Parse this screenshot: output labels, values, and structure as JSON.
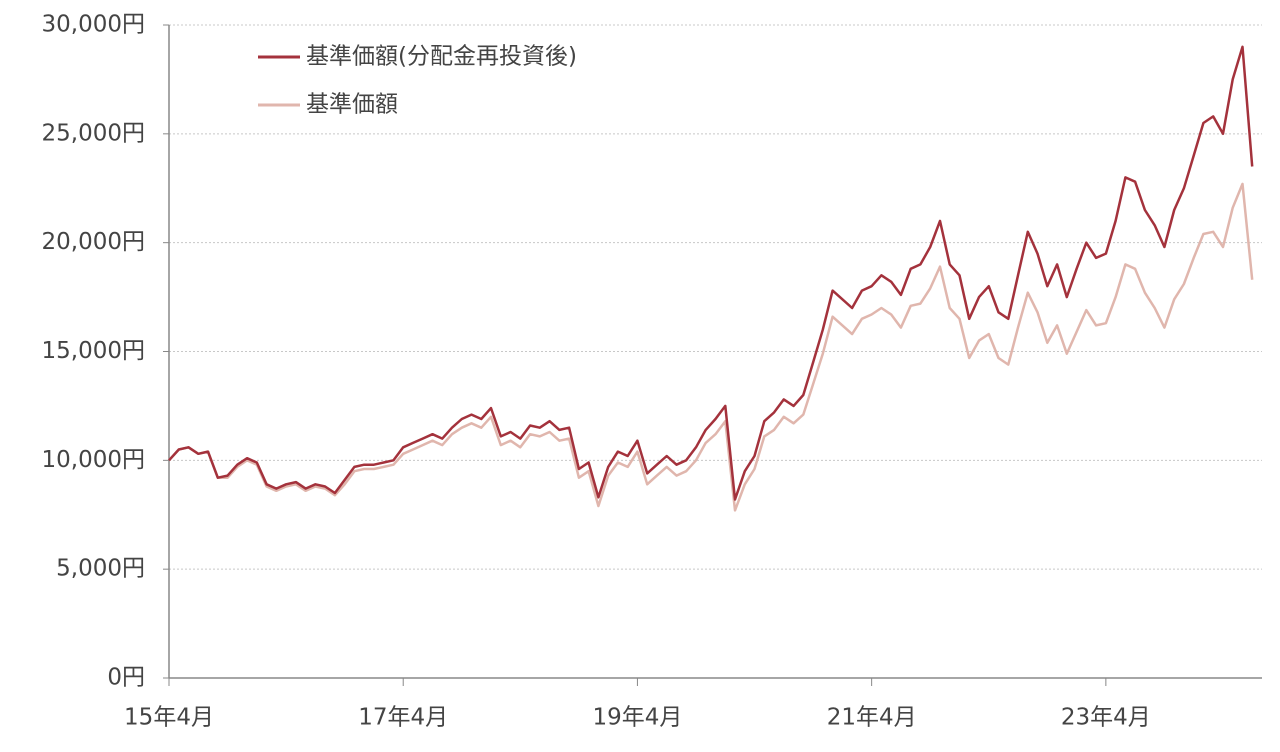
{
  "chart_data": {
    "type": "line",
    "categories": [
      "15年4月",
      null,
      null,
      null,
      null,
      null,
      null,
      null,
      null,
      null,
      null,
      null,
      null,
      null,
      null,
      null,
      null,
      null,
      null,
      null,
      null,
      null,
      null,
      null,
      "17年4月",
      null,
      null,
      null,
      null,
      null,
      null,
      null,
      null,
      null,
      null,
      null,
      null,
      null,
      null,
      null,
      null,
      null,
      null,
      null,
      null,
      null,
      null,
      null,
      "19年4月",
      null,
      null,
      null,
      null,
      null,
      null,
      null,
      null,
      null,
      null,
      null,
      null,
      null,
      null,
      null,
      null,
      null,
      null,
      null,
      null,
      null,
      null,
      null,
      "21年4月",
      null,
      null,
      null,
      null,
      null,
      null,
      null,
      null,
      null,
      null,
      null,
      null,
      null,
      null,
      null,
      null,
      null,
      null,
      null,
      null,
      null,
      null,
      null,
      "23年4月",
      null,
      null,
      null,
      null,
      null,
      null,
      null,
      null,
      null,
      null,
      null,
      null,
      null,
      null,
      null
    ],
    "series": [
      {
        "name": "基準価額(分配金再投資後)",
        "color": "#a4323c",
        "values": [
          10000,
          10500,
          10600,
          10300,
          10400,
          9200,
          9300,
          9800,
          10100,
          9900,
          8900,
          8700,
          8900,
          9000,
          8700,
          8900,
          8800,
          8500,
          9100,
          9700,
          9800,
          9800,
          9900,
          10000,
          10600,
          10800,
          11000,
          11200,
          11000,
          11500,
          11900,
          12100,
          11900,
          12400,
          11100,
          11300,
          11000,
          11600,
          11500,
          11800,
          11400,
          11500,
          9600,
          9900,
          8300,
          9700,
          10400,
          10200,
          10900,
          9400,
          9800,
          10200,
          9800,
          10000,
          10600,
          11400,
          11900,
          12500,
          8200,
          9500,
          10200,
          11800,
          12200,
          12800,
          12500,
          13000,
          14500,
          16000,
          17800,
          17400,
          17000,
          17800,
          18000,
          18500,
          18200,
          17600,
          18800,
          19000,
          19800,
          21000,
          19000,
          18500,
          16500,
          17500,
          18000,
          16800,
          16500,
          18500,
          20500,
          19500,
          18000,
          19000,
          17500,
          18800,
          20000,
          19300,
          19500,
          21000,
          23000,
          22800,
          21500,
          20800,
          19800,
          21500,
          22500,
          24000,
          25500,
          25800,
          25000,
          27500,
          29000,
          23500
        ]
      },
      {
        "name": "基準価額",
        "color": "#e0b6ad",
        "values": [
          10000,
          10500,
          10600,
          10300,
          10400,
          9200,
          9200,
          9700,
          10000,
          9800,
          8800,
          8600,
          8800,
          8900,
          8600,
          8800,
          8700,
          8400,
          8900,
          9500,
          9600,
          9600,
          9700,
          9800,
          10300,
          10500,
          10700,
          10900,
          10700,
          11200,
          11500,
          11700,
          11500,
          12000,
          10700,
          10900,
          10600,
          11200,
          11100,
          11300,
          10900,
          11000,
          9200,
          9500,
          7900,
          9300,
          9900,
          9700,
          10400,
          8900,
          9300,
          9700,
          9300,
          9500,
          10000,
          10800,
          11200,
          11800,
          7700,
          8900,
          9600,
          11100,
          11400,
          12000,
          11700,
          12100,
          13500,
          14900,
          16600,
          16200,
          15800,
          16500,
          16700,
          17000,
          16700,
          16100,
          17100,
          17200,
          17900,
          18900,
          17000,
          16500,
          14700,
          15500,
          15800,
          14700,
          14400,
          16100,
          17700,
          16800,
          15400,
          16200,
          14900,
          15900,
          16900,
          16200,
          16300,
          17500,
          19000,
          18800,
          17700,
          17000,
          16100,
          17400,
          18100,
          19300,
          20400,
          20500,
          19800,
          21600,
          22700,
          18300
        ]
      }
    ],
    "ylim": [
      0,
      30000
    ],
    "yticks": [
      {
        "value": 0,
        "label": "0円"
      },
      {
        "value": 5000,
        "label": "5,000円"
      },
      {
        "value": 10000,
        "label": "10,000円"
      },
      {
        "value": 15000,
        "label": "15,000円"
      },
      {
        "value": 20000,
        "label": "20,000円"
      },
      {
        "value": 25000,
        "label": "25,000円"
      },
      {
        "value": 30000,
        "label": "30,000円"
      }
    ],
    "grid": true,
    "legend": "upper left"
  }
}
